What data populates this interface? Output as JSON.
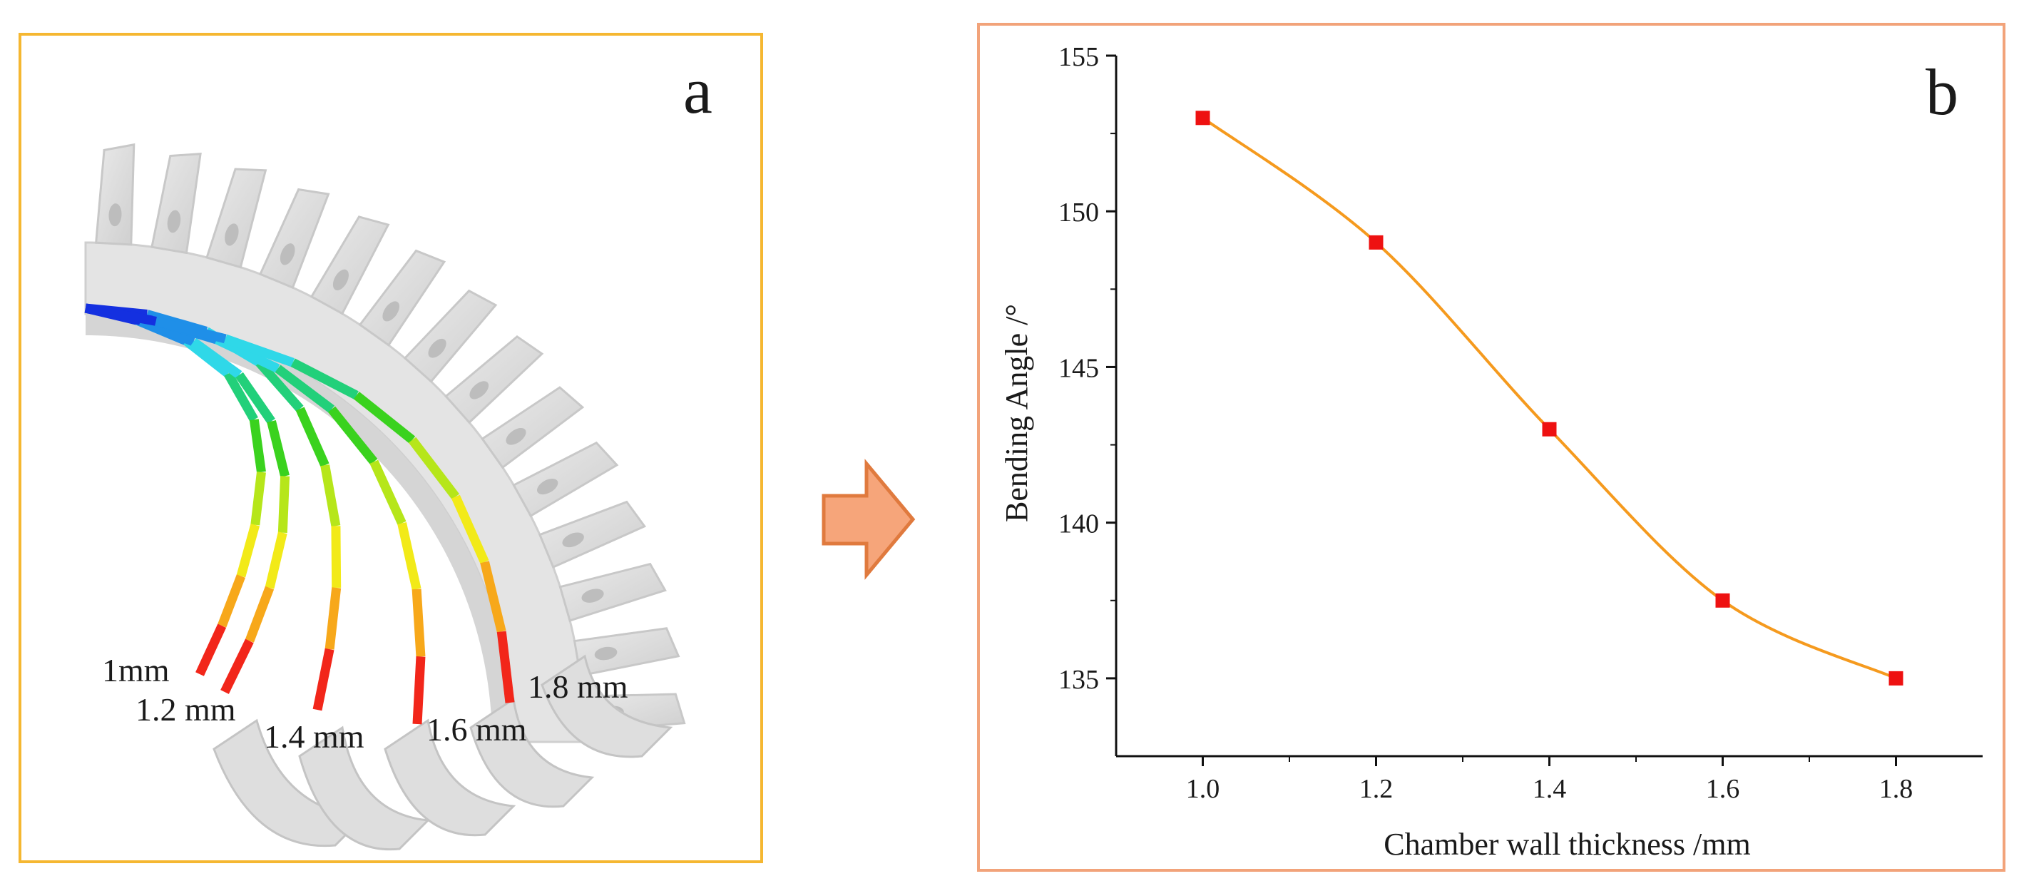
{
  "panel_a": {
    "label": "a",
    "frame_color": "#f5b731",
    "curve_labels": [
      "1mm",
      "1.2 mm",
      "1.4 mm",
      "1.6 mm",
      "1.8 mm"
    ],
    "color_scale": [
      "#1430e0",
      "#1f8fe8",
      "#2fd8e8",
      "#22d07a",
      "#3ad21e",
      "#b6e61a",
      "#f2ea18",
      "#f7a81a",
      "#f2261a"
    ]
  },
  "arrow": {
    "icon": "right-arrow-icon",
    "fill": "#f6a57a",
    "stroke": "#e07a3e"
  },
  "chart_data": {
    "type": "line",
    "panel_label": "b",
    "title": "",
    "xlabel": "Chamber wall thickness /mm",
    "ylabel": "Bending Angle /°",
    "x": [
      1.0,
      1.2,
      1.4,
      1.6,
      1.8
    ],
    "series": [
      {
        "name": "Bending Angle",
        "values": [
          153,
          149,
          143,
          137.5,
          135
        ]
      }
    ],
    "xlim": [
      0.9,
      1.9
    ],
    "ylim": [
      132.5,
      155
    ],
    "xticks": [
      1.0,
      1.2,
      1.4,
      1.6,
      1.8
    ],
    "xtick_labels": [
      "1.0",
      "1.2",
      "1.4",
      "1.6",
      "1.8"
    ],
    "yticks": [
      135,
      140,
      145,
      150,
      155
    ],
    "ytick_labels": [
      "135",
      "140",
      "145",
      "150",
      "155"
    ],
    "grid": false,
    "line_color": "#f59a1e",
    "marker_color": "#ee1111",
    "frame_color": "#f2a37a"
  }
}
